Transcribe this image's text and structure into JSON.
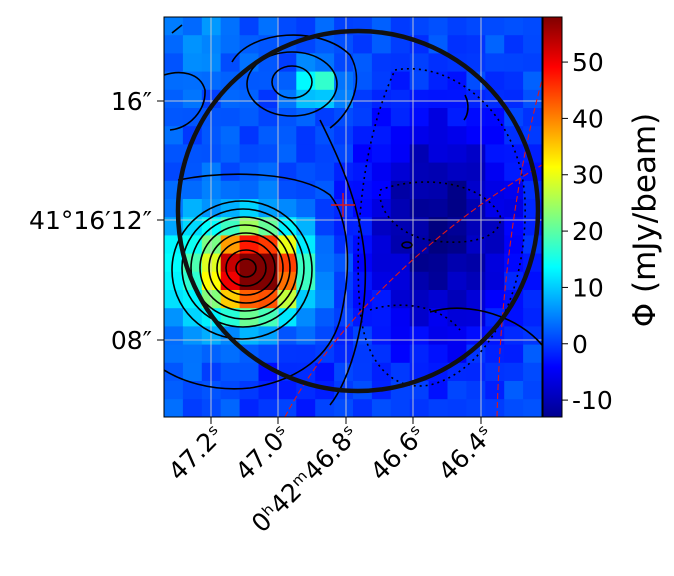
{
  "chart_data": {
    "type": "heatmap",
    "title": "",
    "xlabel": "",
    "ylabel": "",
    "x_ticks": [
      "47.2ˢ",
      "47.0ˢ",
      "0ʰ42ᵐ46.8ˢ",
      "46.6ˢ",
      "46.4ˢ"
    ],
    "y_ticks": [
      "16″",
      "41°16′12″",
      "08″"
    ],
    "colorbar": {
      "label": "Φ (mJy/beam)",
      "range": [
        -13,
        58
      ],
      "ticks": [
        "-10",
        "0",
        "10",
        "20",
        "30",
        "40",
        "50"
      ],
      "colormap": "jet"
    },
    "grid": true,
    "peak": {
      "ra_s": 47.13,
      "dec_arcsec": 10.3,
      "value": 58
    },
    "secondary_source": {
      "ra_s": 47.04,
      "dec_arcsec": 16.5,
      "value": 18
    },
    "background_level": [
      -10,
      5
    ],
    "overlays": [
      "black circle aperture",
      "red cross marker",
      "red dashed curves",
      "black contours, dotted for negative levels"
    ]
  }
}
